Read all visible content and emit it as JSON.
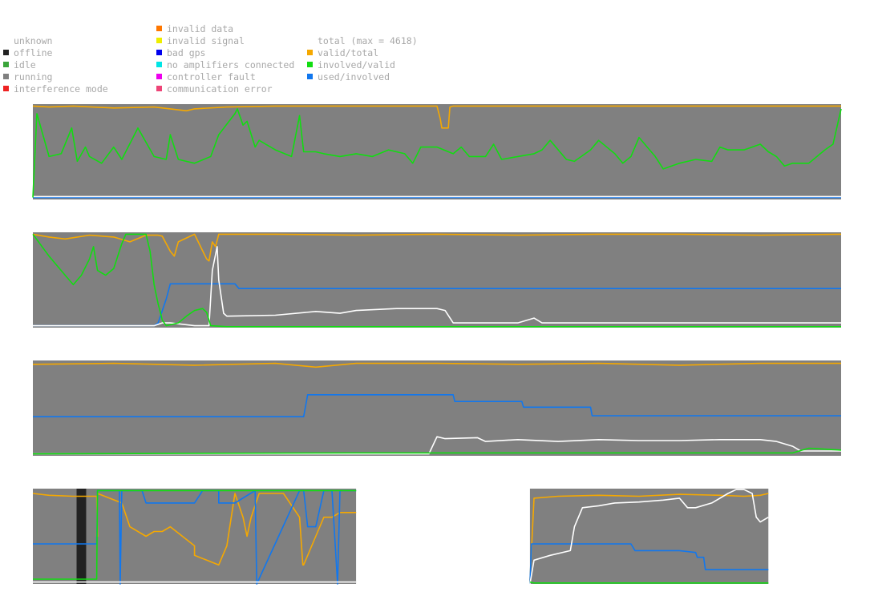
{
  "legend": {
    "state": [
      {
        "label": "unknown",
        "color": ""
      },
      {
        "label": "offline",
        "color": "#222222"
      },
      {
        "label": "idle",
        "color": "#3aa53a"
      },
      {
        "label": "running",
        "color": "#808080"
      },
      {
        "label": "interference mode",
        "color": "#ee2222"
      }
    ],
    "errors": [
      {
        "label": "invalid data",
        "color": "#ff7700"
      },
      {
        "label": "invalid signal",
        "color": "#eeee00"
      },
      {
        "label": "bad gps",
        "color": "#0000ee"
      },
      {
        "label": "no amplifiers connected",
        "color": "#00e5e5"
      },
      {
        "label": "controller fault",
        "color": "#ee00ee"
      },
      {
        "label": "communication error",
        "color": "#ee4477"
      }
    ],
    "series": [
      {
        "label": "total (max = 4618)",
        "color": ""
      },
      {
        "label": "valid/total",
        "color": "#f5a800"
      },
      {
        "label": "involved/valid",
        "color": "#11dd11"
      },
      {
        "label": "used/involved",
        "color": "#1177ee"
      }
    ]
  },
  "colors": {
    "running": "#808080",
    "offline": "#222222",
    "valid_total": "#f5a800",
    "involved_valid": "#11dd11",
    "used_involved": "#1177ee",
    "total": "#ffffff"
  },
  "chart_data": [
    {
      "type": "line",
      "x_range": [
        0,
        1
      ],
      "ylim": [
        0,
        1
      ],
      "state": [
        {
          "from": 0,
          "to": 1,
          "state": "running"
        }
      ],
      "series": [
        {
          "key": "valid_total",
          "name": "valid/total",
          "x": [
            0,
            0.02,
            0.05,
            0.1,
            0.15,
            0.19,
            0.2,
            0.24,
            0.3,
            0.4,
            0.5,
            0.504,
            0.506,
            0.514,
            0.516,
            0.52,
            0.6,
            0.7,
            0.8,
            0.9,
            0.95,
            1
          ],
          "y": [
            0.98,
            0.97,
            0.98,
            0.96,
            0.97,
            0.93,
            0.95,
            0.97,
            0.98,
            0.98,
            0.98,
            0.85,
            0.75,
            0.75,
            0.97,
            0.98,
            0.98,
            0.98,
            0.98,
            0.98,
            0.98,
            0.98
          ]
        },
        {
          "key": "involved_valid",
          "name": "involved/valid",
          "x": [
            0,
            0.005,
            0.02,
            0.035,
            0.048,
            0.055,
            0.065,
            0.07,
            0.085,
            0.1,
            0.11,
            0.13,
            0.15,
            0.165,
            0.17,
            0.18,
            0.2,
            0.22,
            0.23,
            0.25,
            0.253,
            0.26,
            0.265,
            0.275,
            0.28,
            0.3,
            0.32,
            0.33,
            0.335,
            0.35,
            0.36,
            0.38,
            0.4,
            0.42,
            0.44,
            0.46,
            0.47,
            0.48,
            0.5,
            0.52,
            0.53,
            0.54,
            0.56,
            0.57,
            0.58,
            0.6,
            0.62,
            0.63,
            0.64,
            0.66,
            0.67,
            0.69,
            0.7,
            0.72,
            0.73,
            0.74,
            0.75,
            0.77,
            0.78,
            0.8,
            0.82,
            0.84,
            0.85,
            0.86,
            0.88,
            0.9,
            0.91,
            0.92,
            0.93,
            0.94,
            0.96,
            0.97,
            0.98,
            0.99,
            1
          ],
          "y": [
            0.02,
            0.9,
            0.45,
            0.48,
            0.75,
            0.4,
            0.55,
            0.45,
            0.38,
            0.55,
            0.42,
            0.75,
            0.45,
            0.42,
            0.68,
            0.42,
            0.38,
            0.45,
            0.68,
            0.9,
            0.95,
            0.78,
            0.82,
            0.55,
            0.62,
            0.52,
            0.45,
            0.88,
            0.5,
            0.5,
            0.48,
            0.45,
            0.48,
            0.45,
            0.52,
            0.48,
            0.38,
            0.55,
            0.55,
            0.48,
            0.55,
            0.45,
            0.45,
            0.58,
            0.42,
            0.45,
            0.48,
            0.52,
            0.62,
            0.42,
            0.4,
            0.52,
            0.62,
            0.48,
            0.38,
            0.45,
            0.65,
            0.45,
            0.32,
            0.38,
            0.42,
            0.4,
            0.55,
            0.52,
            0.52,
            0.58,
            0.5,
            0.45,
            0.35,
            0.38,
            0.38,
            0.45,
            0.52,
            0.58,
            0.95
          ]
        },
        {
          "key": "used_involved",
          "name": "used/involved",
          "x": [
            0,
            1
          ],
          "y": [
            0.02,
            0.02
          ]
        },
        {
          "key": "total",
          "name": "total",
          "x": [
            0,
            1
          ],
          "y": [
            0.03,
            0.03
          ]
        }
      ]
    },
    {
      "type": "line",
      "x_range": [
        0,
        1
      ],
      "ylim": [
        0,
        1
      ],
      "state": [
        {
          "from": 0,
          "to": 1,
          "state": "running"
        }
      ],
      "series": [
        {
          "key": "valid_total",
          "name": "valid/total",
          "x": [
            0,
            0.02,
            0.04,
            0.07,
            0.1,
            0.12,
            0.14,
            0.155,
            0.16,
            0.17,
            0.175,
            0.18,
            0.2,
            0.215,
            0.218,
            0.222,
            0.226,
            0.23,
            0.235,
            0.238,
            0.24,
            0.3,
            0.4,
            0.5,
            0.6,
            0.7,
            0.8,
            0.9,
            1
          ],
          "y": [
            0.98,
            0.95,
            0.93,
            0.97,
            0.95,
            0.9,
            0.97,
            0.97,
            0.96,
            0.8,
            0.75,
            0.9,
            0.98,
            0.72,
            0.7,
            0.9,
            0.85,
            0.98,
            0.98,
            0.98,
            0.98,
            0.98,
            0.97,
            0.98,
            0.97,
            0.98,
            0.98,
            0.97,
            0.98
          ]
        },
        {
          "key": "involved_valid",
          "name": "involved/valid",
          "x": [
            0,
            0.02,
            0.04,
            0.05,
            0.06,
            0.07,
            0.075,
            0.08,
            0.09,
            0.1,
            0.11,
            0.115,
            0.12,
            0.13,
            0.135,
            0.14,
            0.145,
            0.15,
            0.155,
            0.158,
            0.16,
            0.165,
            0.18,
            0.19,
            0.2,
            0.21,
            0.215,
            0.22,
            0.24,
            0.26,
            0.3,
            0.4,
            0.5,
            0.6,
            0.7,
            0.8,
            0.9,
            1
          ],
          "y": [
            0.98,
            0.75,
            0.55,
            0.45,
            0.55,
            0.72,
            0.85,
            0.6,
            0.55,
            0.62,
            0.88,
            0.98,
            0.98,
            0.98,
            0.98,
            0.98,
            0.8,
            0.45,
            0.25,
            0.15,
            0.08,
            0.02,
            0.05,
            0.12,
            0.18,
            0.2,
            0.16,
            0.02,
            0.01,
            0.01,
            0.01,
            0.01,
            0.01,
            0.01,
            0.01,
            0.01,
            0.01,
            0.01
          ]
        },
        {
          "key": "used_involved",
          "name": "used/involved",
          "x": [
            0,
            0.15,
            0.155,
            0.165,
            0.17,
            0.25,
            0.255,
            1
          ],
          "y": [
            0.02,
            0.02,
            0.05,
            0.3,
            0.46,
            0.46,
            0.41,
            0.41
          ]
        },
        {
          "key": "total",
          "name": "total",
          "x": [
            0,
            0.15,
            0.16,
            0.17,
            0.2,
            0.218,
            0.222,
            0.228,
            0.23,
            0.236,
            0.24,
            0.3,
            0.35,
            0.38,
            0.4,
            0.45,
            0.5,
            0.51,
            0.52,
            0.6,
            0.62,
            0.63,
            0.64,
            0.65,
            0.7,
            0.8,
            0.9,
            1
          ],
          "y": [
            0.02,
            0.02,
            0.05,
            0.05,
            0.02,
            0.02,
            0.6,
            0.85,
            0.5,
            0.15,
            0.12,
            0.13,
            0.17,
            0.15,
            0.18,
            0.2,
            0.2,
            0.18,
            0.05,
            0.05,
            0.1,
            0.05,
            0.05,
            0.05,
            0.05,
            0.05,
            0.05,
            0.05
          ]
        }
      ]
    },
    {
      "type": "line",
      "x_range": [
        0,
        1
      ],
      "ylim": [
        0,
        1
      ],
      "state": [
        {
          "from": 0,
          "to": 1,
          "state": "running"
        }
      ],
      "series": [
        {
          "key": "valid_total",
          "name": "valid/total",
          "x": [
            0,
            0.1,
            0.2,
            0.3,
            0.35,
            0.4,
            0.5,
            0.6,
            0.7,
            0.8,
            0.9,
            1
          ],
          "y": [
            0.96,
            0.97,
            0.95,
            0.97,
            0.93,
            0.97,
            0.97,
            0.96,
            0.97,
            0.95,
            0.97,
            0.97
          ]
        },
        {
          "key": "involved_valid",
          "name": "involved/valid",
          "x": [
            0,
            0.4,
            0.6,
            0.8,
            0.94,
            0.96,
            1
          ],
          "y": [
            0.02,
            0.03,
            0.03,
            0.03,
            0.03,
            0.08,
            0.06
          ]
        },
        {
          "key": "used_involved",
          "name": "used/involved",
          "x": [
            0,
            0.335,
            0.34,
            0.52,
            0.522,
            0.605,
            0.607,
            0.69,
            0.692,
            1
          ],
          "y": [
            0.41,
            0.41,
            0.64,
            0.64,
            0.57,
            0.57,
            0.51,
            0.51,
            0.42,
            0.42
          ]
        },
        {
          "key": "total",
          "name": "total",
          "x": [
            0,
            0.49,
            0.5,
            0.51,
            0.55,
            0.56,
            0.6,
            0.65,
            0.7,
            0.75,
            0.8,
            0.85,
            0.9,
            0.92,
            0.94,
            0.95,
            1
          ],
          "y": [
            0.02,
            0.02,
            0.2,
            0.18,
            0.19,
            0.15,
            0.17,
            0.15,
            0.17,
            0.16,
            0.16,
            0.17,
            0.17,
            0.15,
            0.1,
            0.05,
            0.05
          ]
        }
      ]
    },
    {
      "type": "line",
      "x_range": [
        0,
        1
      ],
      "ylim": [
        0,
        1
      ],
      "state": [
        {
          "from": 0,
          "to": 0.054,
          "state": "running"
        },
        {
          "from": 0.054,
          "to": 0.066,
          "state": "offline"
        },
        {
          "from": 0.066,
          "to": 0.4,
          "state": "running"
        },
        {
          "from": 0.4,
          "to": 0.615,
          "state": "unknown"
        },
        {
          "from": 0.615,
          "to": 0.91,
          "state": "running"
        }
      ],
      "series": [
        {
          "key": "valid_total",
          "name": "valid/total",
          "x": [
            0,
            0.02,
            0.05,
            0.079,
            0.08,
            0.079,
            0.08,
            0.11,
            0.12,
            0.14,
            0.15,
            0.16,
            0.17,
            0.2,
            0.2,
            0.23,
            0.24,
            0.25,
            0.26,
            0.265,
            0.27,
            0.28,
            0.31,
            0.33,
            0.334,
            0.335,
            0.35,
            0.36,
            0.37,
            0.38,
            0.4
          ],
          "y": [
            0.95,
            0.93,
            0.92,
            0.92,
            0.5,
            0.5,
            0.95,
            0.85,
            0.6,
            0.5,
            0.55,
            0.55,
            0.6,
            0.4,
            0.3,
            0.2,
            0.4,
            0.95,
            0.7,
            0.5,
            0.7,
            0.95,
            0.95,
            0.7,
            0.2,
            0.2,
            0.5,
            0.7,
            0.7,
            0.75,
            0.75
          ]
        },
        {
          "key": "involved_valid",
          "name": "involved/valid",
          "x": [
            0,
            0.079,
            0.08,
            0.4
          ],
          "y": [
            0.05,
            0.05,
            0.98,
            0.98
          ]
        },
        {
          "key": "used_involved",
          "name": "used/involved",
          "x": [
            0,
            0.079,
            0.08,
            0.107,
            0.108,
            0.11,
            0.135,
            0.14,
            0.2,
            0.21,
            0.22,
            0.23,
            0.23,
            0.25,
            0.275,
            0.277,
            0.33,
            0.335,
            0.34,
            0.35,
            0.36,
            0.37,
            0.377,
            0.38,
            0.4
          ],
          "y": [
            0.42,
            0.42,
            0.98,
            0.98,
            0.0,
            0.98,
            0.98,
            0.85,
            0.85,
            0.98,
            0.98,
            0.98,
            0.85,
            0.85,
            0.98,
            0.0,
            0.98,
            0.98,
            0.6,
            0.6,
            0.98,
            0.98,
            0.0,
            0.98,
            0.98
          ]
        },
        {
          "key": "total",
          "name": "total",
          "x": [
            0,
            0.05,
            0.1,
            0.15,
            0.2,
            0.25,
            0.3,
            0.35,
            0.4
          ],
          "y": [
            0.02,
            0.02,
            0.02,
            0.02,
            0.02,
            0.02,
            0.02,
            0.02,
            0.02
          ]
        },
        {
          "key": "valid_total",
          "name": "valid/total",
          "x": [
            0.615,
            0.62,
            0.65,
            0.7,
            0.75,
            0.8,
            0.85,
            0.88,
            0.9,
            0.91
          ],
          "y": [
            0.02,
            0.9,
            0.92,
            0.93,
            0.92,
            0.94,
            0.93,
            0.92,
            0.93,
            0.95
          ]
        },
        {
          "key": "involved_valid",
          "name": "involved/valid",
          "x": [
            0.615,
            0.62,
            0.7,
            0.8,
            0.91
          ],
          "y": [
            0.02,
            0.01,
            0.01,
            0.01,
            0.01
          ]
        },
        {
          "key": "used_involved",
          "name": "used/involved",
          "x": [
            0.615,
            0.617,
            0.62,
            0.66,
            0.74,
            0.745,
            0.8,
            0.82,
            0.822,
            0.83,
            0.832,
            0.91
          ],
          "y": [
            0.0,
            0.42,
            0.42,
            0.42,
            0.42,
            0.35,
            0.35,
            0.33,
            0.28,
            0.28,
            0.15,
            0.15
          ]
        },
        {
          "key": "total",
          "name": "total",
          "x": [
            0.615,
            0.62,
            0.64,
            0.665,
            0.67,
            0.68,
            0.7,
            0.72,
            0.75,
            0.78,
            0.8,
            0.81,
            0.82,
            0.84,
            0.86,
            0.87,
            0.88,
            0.89,
            0.895,
            0.9,
            0.91
          ],
          "y": [
            0.0,
            0.25,
            0.3,
            0.35,
            0.6,
            0.8,
            0.82,
            0.85,
            0.86,
            0.88,
            0.9,
            0.8,
            0.8,
            0.85,
            0.95,
            0.99,
            0.99,
            0.95,
            0.7,
            0.65,
            0.7
          ]
        }
      ]
    }
  ]
}
